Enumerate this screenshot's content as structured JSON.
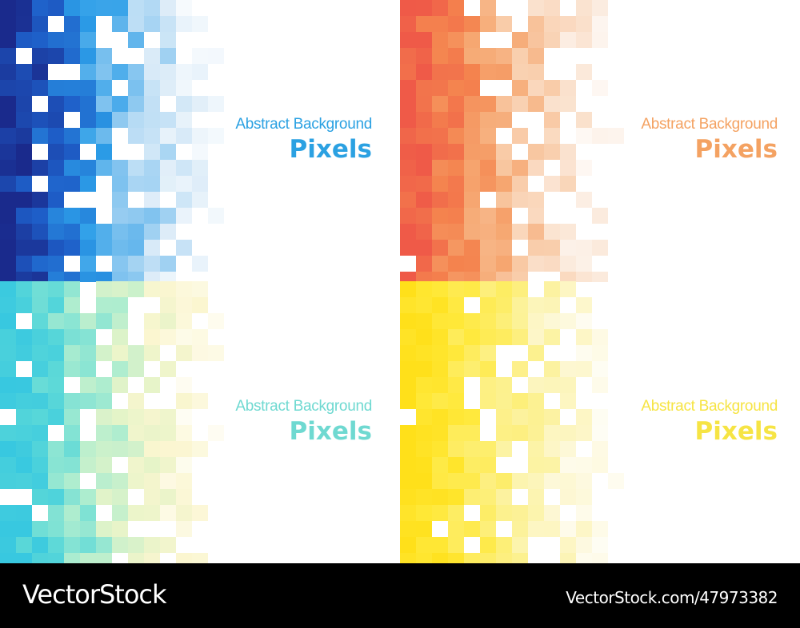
{
  "panels": [
    {
      "subtitle": "Abstract Background",
      "title": "Pixels"
    },
    {
      "subtitle": "Abstract Background",
      "title": "Pixels"
    },
    {
      "subtitle": "Abstract Background",
      "title": "Pixels"
    },
    {
      "subtitle": "Abstract Background",
      "title": "Pixels"
    }
  ],
  "footer": {
    "brand": "VectorStock",
    "reference": "VectorStock.com/47973382"
  }
}
